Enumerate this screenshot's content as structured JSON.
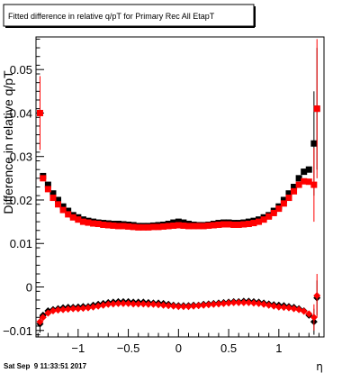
{
  "chart_data": {
    "type": "scatter",
    "title": "Fitted difference in relative q/pT for Primary Rec All EtapT",
    "xlabel": "η",
    "ylabel": "Difference in relative q/pT",
    "xlim": [
      -1.42,
      1.45
    ],
    "ylim": [
      -0.0115,
      0.0575
    ],
    "grid": false,
    "legend": "none",
    "x_ticks": [
      -1,
      -0.5,
      0,
      0.5,
      1
    ],
    "x_tick_labels": [
      "−1",
      "−0.5",
      "0",
      "0.5",
      "1"
    ],
    "y_ticks": [
      -0.01,
      0,
      0.01,
      0.02,
      0.03,
      0.04,
      0.05
    ],
    "y_tick_labels": [
      "−0.01",
      "0",
      "0.01",
      "0.02",
      "0.03",
      "0.04",
      "0.05"
    ],
    "timestamp": "Sat Sep  9 11:33:51 2017",
    "series": [
      {
        "color": "#000000",
        "marker": "square",
        "points": [
          [
            -1.35,
            0.0255
          ],
          [
            -1.3,
            0.0235
          ],
          [
            -1.25,
            0.0215
          ],
          [
            -1.2,
            0.02
          ],
          [
            -1.15,
            0.0185
          ],
          [
            -1.1,
            0.0175
          ],
          [
            -1.05,
            0.0165
          ],
          [
            -1.0,
            0.016
          ],
          [
            -0.95,
            0.0155
          ],
          [
            -0.9,
            0.0152
          ],
          [
            -0.85,
            0.015
          ],
          [
            -0.8,
            0.0148
          ],
          [
            -0.75,
            0.0147
          ],
          [
            -0.7,
            0.0146
          ],
          [
            -0.65,
            0.0145
          ],
          [
            -0.6,
            0.0145
          ],
          [
            -0.55,
            0.0144
          ],
          [
            -0.5,
            0.0143
          ],
          [
            -0.45,
            0.0142
          ],
          [
            -0.4,
            0.014
          ],
          [
            -0.35,
            0.014
          ],
          [
            -0.3,
            0.014
          ],
          [
            -0.25,
            0.0141
          ],
          [
            -0.2,
            0.0142
          ],
          [
            -0.15,
            0.0143
          ],
          [
            -0.1,
            0.0145
          ],
          [
            -0.05,
            0.0148
          ],
          [
            0.0,
            0.015
          ],
          [
            0.05,
            0.0148
          ],
          [
            0.1,
            0.0145
          ],
          [
            0.15,
            0.0143
          ],
          [
            0.2,
            0.0142
          ],
          [
            0.25,
            0.0142
          ],
          [
            0.3,
            0.0143
          ],
          [
            0.35,
            0.0145
          ],
          [
            0.4,
            0.0147
          ],
          [
            0.45,
            0.0148
          ],
          [
            0.5,
            0.0148
          ],
          [
            0.55,
            0.0147
          ],
          [
            0.6,
            0.0147
          ],
          [
            0.65,
            0.0148
          ],
          [
            0.7,
            0.015
          ],
          [
            0.75,
            0.0152
          ],
          [
            0.8,
            0.0155
          ],
          [
            0.85,
            0.016
          ],
          [
            0.9,
            0.0165
          ],
          [
            0.95,
            0.0175
          ],
          [
            1.0,
            0.0185
          ],
          [
            1.05,
            0.02
          ],
          [
            1.1,
            0.0215
          ],
          [
            1.15,
            0.023
          ],
          [
            1.2,
            0.025
          ],
          [
            1.25,
            0.0265
          ],
          [
            1.3,
            0.027
          ],
          [
            1.35,
            0.033
          ],
          [
            1.38,
            0.041
          ]
        ],
        "errors": [
          0,
          0,
          0,
          0,
          0,
          0,
          0,
          0,
          0,
          0,
          0,
          0,
          0,
          0,
          0,
          0,
          0,
          0,
          0,
          0,
          0,
          0,
          0,
          0,
          0,
          0,
          0,
          0,
          0,
          0,
          0,
          0,
          0,
          0,
          0,
          0,
          0,
          0,
          0,
          0,
          0,
          0,
          0,
          0,
          0,
          0,
          0,
          0,
          0,
          0,
          0,
          0,
          0,
          0,
          0.012,
          0.014
        ]
      },
      {
        "color": "#ff0000",
        "marker": "square",
        "points": [
          [
            -1.38,
            0.04
          ],
          [
            -1.35,
            0.025
          ],
          [
            -1.3,
            0.0225
          ],
          [
            -1.25,
            0.0205
          ],
          [
            -1.2,
            0.019
          ],
          [
            -1.15,
            0.0177
          ],
          [
            -1.1,
            0.0167
          ],
          [
            -1.05,
            0.016
          ],
          [
            -1.0,
            0.0155
          ],
          [
            -0.95,
            0.015
          ],
          [
            -0.9,
            0.0148
          ],
          [
            -0.85,
            0.0146
          ],
          [
            -0.8,
            0.0145
          ],
          [
            -0.75,
            0.0143
          ],
          [
            -0.7,
            0.0142
          ],
          [
            -0.65,
            0.0141
          ],
          [
            -0.6,
            0.014
          ],
          [
            -0.55,
            0.014
          ],
          [
            -0.5,
            0.0139
          ],
          [
            -0.45,
            0.0138
          ],
          [
            -0.4,
            0.0137
          ],
          [
            -0.35,
            0.0137
          ],
          [
            -0.3,
            0.0137
          ],
          [
            -0.25,
            0.0138
          ],
          [
            -0.2,
            0.0138
          ],
          [
            -0.15,
            0.0139
          ],
          [
            -0.1,
            0.014
          ],
          [
            -0.05,
            0.0141
          ],
          [
            0.0,
            0.0142
          ],
          [
            0.05,
            0.0141
          ],
          [
            0.1,
            0.014
          ],
          [
            0.15,
            0.014
          ],
          [
            0.2,
            0.014
          ],
          [
            0.25,
            0.014
          ],
          [
            0.3,
            0.0141
          ],
          [
            0.35,
            0.0142
          ],
          [
            0.4,
            0.0143
          ],
          [
            0.45,
            0.0144
          ],
          [
            0.5,
            0.0144
          ],
          [
            0.55,
            0.0143
          ],
          [
            0.6,
            0.0143
          ],
          [
            0.65,
            0.0144
          ],
          [
            0.7,
            0.0145
          ],
          [
            0.75,
            0.0147
          ],
          [
            0.8,
            0.015
          ],
          [
            0.85,
            0.0155
          ],
          [
            0.9,
            0.0162
          ],
          [
            0.95,
            0.017
          ],
          [
            1.0,
            0.018
          ],
          [
            1.05,
            0.0192
          ],
          [
            1.1,
            0.0205
          ],
          [
            1.15,
            0.022
          ],
          [
            1.2,
            0.0235
          ],
          [
            1.25,
            0.0243
          ],
          [
            1.3,
            0.0242
          ],
          [
            1.35,
            0.0235
          ],
          [
            1.38,
            0.041
          ]
        ],
        "errors": [
          0.0085,
          0,
          0,
          0,
          0,
          0,
          0,
          0,
          0,
          0,
          0,
          0,
          0,
          0,
          0,
          0,
          0,
          0,
          0,
          0,
          0,
          0,
          0,
          0,
          0,
          0,
          0,
          0,
          0,
          0,
          0,
          0,
          0,
          0,
          0,
          0,
          0,
          0,
          0,
          0,
          0,
          0,
          0,
          0,
          0,
          0,
          0,
          0,
          0,
          0,
          0,
          0,
          0,
          0,
          0,
          0.0085,
          0.016
        ]
      },
      {
        "color": "#000000",
        "marker": "diamond",
        "points": [
          [
            -1.38,
            -0.0085
          ],
          [
            -1.35,
            -0.0065
          ],
          [
            -1.3,
            -0.0055
          ],
          [
            -1.25,
            -0.0052
          ],
          [
            -1.2,
            -0.005
          ],
          [
            -1.15,
            -0.0048
          ],
          [
            -1.1,
            -0.0047
          ],
          [
            -1.05,
            -0.0047
          ],
          [
            -1.0,
            -0.0046
          ],
          [
            -0.95,
            -0.0045
          ],
          [
            -0.9,
            -0.0045
          ],
          [
            -0.85,
            -0.0042
          ],
          [
            -0.8,
            -0.004
          ],
          [
            -0.75,
            -0.0038
          ],
          [
            -0.7,
            -0.0036
          ],
          [
            -0.65,
            -0.0035
          ],
          [
            -0.6,
            -0.0034
          ],
          [
            -0.55,
            -0.0034
          ],
          [
            -0.5,
            -0.0034
          ],
          [
            -0.45,
            -0.0035
          ],
          [
            -0.4,
            -0.0035
          ],
          [
            -0.35,
            -0.0035
          ],
          [
            -0.3,
            -0.0036
          ],
          [
            -0.25,
            -0.0037
          ],
          [
            -0.2,
            -0.0037
          ],
          [
            -0.15,
            -0.0038
          ],
          [
            -0.1,
            -0.004
          ],
          [
            -0.05,
            -0.0042
          ],
          [
            0.0,
            -0.0043
          ],
          [
            0.05,
            -0.0043
          ],
          [
            0.1,
            -0.0043
          ],
          [
            0.15,
            -0.0042
          ],
          [
            0.2,
            -0.0042
          ],
          [
            0.25,
            -0.004
          ],
          [
            0.3,
            -0.0039
          ],
          [
            0.35,
            -0.0038
          ],
          [
            0.4,
            -0.0037
          ],
          [
            0.45,
            -0.0036
          ],
          [
            0.5,
            -0.0035
          ],
          [
            0.55,
            -0.0034
          ],
          [
            0.6,
            -0.0034
          ],
          [
            0.65,
            -0.0033
          ],
          [
            0.7,
            -0.0033
          ],
          [
            0.75,
            -0.0034
          ],
          [
            0.8,
            -0.0035
          ],
          [
            0.85,
            -0.0037
          ],
          [
            0.9,
            -0.0039
          ],
          [
            0.95,
            -0.0041
          ],
          [
            1.0,
            -0.0042
          ],
          [
            1.05,
            -0.0043
          ],
          [
            1.1,
            -0.0045
          ],
          [
            1.15,
            -0.0047
          ],
          [
            1.2,
            -0.005
          ],
          [
            1.25,
            -0.0055
          ],
          [
            1.3,
            -0.0065
          ],
          [
            1.35,
            -0.008
          ],
          [
            1.38,
            -0.0025
          ]
        ],
        "errors": [
          0.002,
          0,
          0,
          0,
          0,
          0,
          0,
          0,
          0,
          0,
          0,
          0,
          0,
          0,
          0,
          0,
          0,
          0,
          0,
          0,
          0,
          0,
          0,
          0,
          0,
          0,
          0,
          0,
          0,
          0,
          0,
          0,
          0,
          0,
          0,
          0,
          0,
          0,
          0,
          0,
          0,
          0,
          0,
          0,
          0,
          0,
          0,
          0,
          0,
          0,
          0,
          0,
          0,
          0,
          0,
          0.003,
          0.004
        ]
      },
      {
        "color": "#ff0000",
        "marker": "diamond",
        "points": [
          [
            -1.38,
            -0.008
          ],
          [
            -1.35,
            -0.007
          ],
          [
            -1.3,
            -0.006
          ],
          [
            -1.25,
            -0.0055
          ],
          [
            -1.2,
            -0.0053
          ],
          [
            -1.15,
            -0.0052
          ],
          [
            -1.1,
            -0.0051
          ],
          [
            -1.05,
            -0.005
          ],
          [
            -1.0,
            -0.005
          ],
          [
            -0.95,
            -0.0049
          ],
          [
            -0.9,
            -0.0048
          ],
          [
            -0.85,
            -0.0046
          ],
          [
            -0.8,
            -0.0044
          ],
          [
            -0.75,
            -0.0042
          ],
          [
            -0.7,
            -0.004
          ],
          [
            -0.65,
            -0.0039
          ],
          [
            -0.6,
            -0.0038
          ],
          [
            -0.55,
            -0.0038
          ],
          [
            -0.5,
            -0.0038
          ],
          [
            -0.45,
            -0.0039
          ],
          [
            -0.4,
            -0.0039
          ],
          [
            -0.35,
            -0.0039
          ],
          [
            -0.3,
            -0.004
          ],
          [
            -0.25,
            -0.004
          ],
          [
            -0.2,
            -0.0041
          ],
          [
            -0.15,
            -0.0042
          ],
          [
            -0.1,
            -0.0043
          ],
          [
            -0.05,
            -0.0044
          ],
          [
            0.0,
            -0.0045
          ],
          [
            0.05,
            -0.0045
          ],
          [
            0.1,
            -0.0045
          ],
          [
            0.15,
            -0.0044
          ],
          [
            0.2,
            -0.0043
          ],
          [
            0.25,
            -0.0042
          ],
          [
            0.3,
            -0.0041
          ],
          [
            0.35,
            -0.004
          ],
          [
            0.4,
            -0.0039
          ],
          [
            0.45,
            -0.0038
          ],
          [
            0.5,
            -0.0037
          ],
          [
            0.55,
            -0.0036
          ],
          [
            0.6,
            -0.0036
          ],
          [
            0.65,
            -0.0036
          ],
          [
            0.7,
            -0.0036
          ],
          [
            0.75,
            -0.0037
          ],
          [
            0.8,
            -0.0038
          ],
          [
            0.85,
            -0.004
          ],
          [
            0.9,
            -0.0042
          ],
          [
            0.95,
            -0.0044
          ],
          [
            1.0,
            -0.0046
          ],
          [
            1.05,
            -0.0047
          ],
          [
            1.1,
            -0.0048
          ],
          [
            1.15,
            -0.005
          ],
          [
            1.2,
            -0.0052
          ],
          [
            1.25,
            -0.0056
          ],
          [
            1.3,
            -0.0062
          ],
          [
            1.35,
            -0.007
          ],
          [
            1.38,
            -0.002
          ]
        ],
        "errors": [
          0,
          0,
          0,
          0,
          0,
          0,
          0,
          0,
          0,
          0,
          0,
          0,
          0,
          0,
          0,
          0,
          0,
          0,
          0,
          0,
          0,
          0,
          0,
          0,
          0,
          0,
          0,
          0,
          0,
          0,
          0,
          0,
          0,
          0,
          0,
          0,
          0,
          0,
          0,
          0,
          0,
          0,
          0,
          0,
          0,
          0,
          0,
          0,
          0,
          0,
          0,
          0,
          0,
          0,
          0,
          0.003,
          0.005
        ]
      }
    ]
  }
}
